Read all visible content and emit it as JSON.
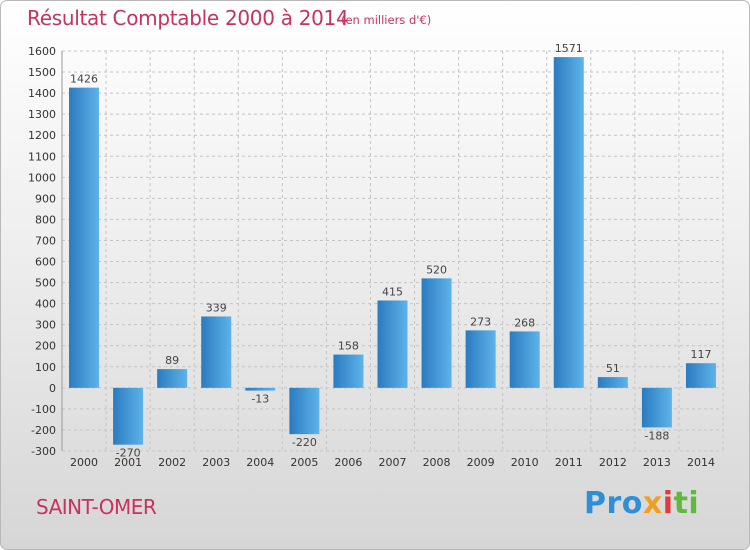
{
  "chart_data": {
    "type": "bar",
    "title": "Résultat Comptable 2000 à 2014",
    "subtitle": "(en milliers d'€)",
    "categories": [
      "2000",
      "2001",
      "2002",
      "2003",
      "2004",
      "2005",
      "2006",
      "2007",
      "2008",
      "2009",
      "2010",
      "2011",
      "2012",
      "2013",
      "2014"
    ],
    "values": [
      1426,
      -270,
      89,
      339,
      -13,
      -220,
      158,
      415,
      520,
      273,
      268,
      1571,
      51,
      -188,
      117
    ],
    "value_labels": [
      "1426",
      "-270",
      "89",
      "339",
      "-13",
      "-220",
      "158",
      "415",
      "520",
      "273",
      "268",
      "1571",
      "51",
      "-188",
      "117"
    ],
    "ylim": [
      -300,
      1600
    ],
    "yticks": [
      -300,
      -200,
      -100,
      0,
      100,
      200,
      300,
      400,
      500,
      600,
      700,
      800,
      900,
      1000,
      1100,
      1200,
      1300,
      1400,
      1500,
      1600
    ],
    "ytick_labels": [
      "-300",
      "-200",
      "-100",
      "0",
      "100",
      "200",
      "300",
      "400",
      "500",
      "600",
      "700",
      "800",
      "900",
      "1000",
      "1100",
      "1200",
      "1300",
      "1400",
      "1500",
      "1600"
    ],
    "xlabel": "",
    "ylabel": "",
    "grid": true,
    "colors": {
      "bar_dark": "#2a7bbf",
      "bar_light": "#5eb3ea",
      "title": "#c8325f",
      "grid": "#c4c4c4"
    }
  },
  "commune": "SAINT-OMER",
  "logo": {
    "p1": "Pro",
    "p2": "x",
    "p3": "i",
    "p4": "ti"
  }
}
